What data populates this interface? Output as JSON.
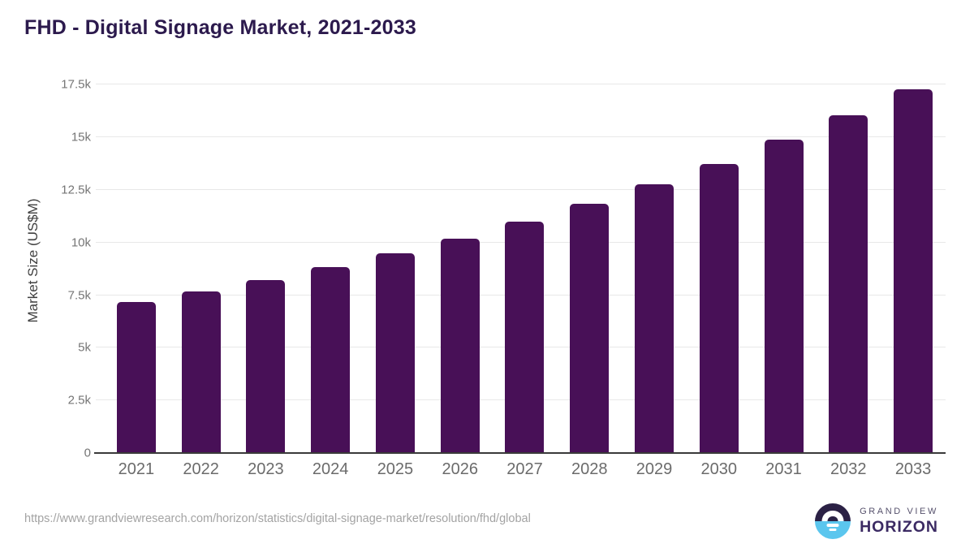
{
  "title": "FHD - Digital Signage Market, 2021-2033",
  "chart_data": {
    "type": "bar",
    "title": "FHD - Digital Signage Market, 2021-2033",
    "categories": [
      "2021",
      "2022",
      "2023",
      "2024",
      "2025",
      "2026",
      "2027",
      "2028",
      "2029",
      "2030",
      "2031",
      "2032",
      "2033"
    ],
    "values": [
      7180,
      7690,
      8230,
      8850,
      9500,
      10190,
      10980,
      11840,
      12770,
      13750,
      14880,
      16050,
      17300
    ],
    "xlabel": "",
    "ylabel": "Market Size (US$M)",
    "yticks": [
      0,
      2500,
      5000,
      7500,
      10000,
      12500,
      15000,
      17500
    ],
    "ytick_labels": [
      "0",
      "2.5k",
      "5k",
      "7.5k",
      "10k",
      "12.5k",
      "15k",
      "17.5k"
    ],
    "ylim": [
      0,
      18250
    ],
    "grid": true,
    "legend": false,
    "bar_color": "#481057"
  },
  "footer": {
    "source_url": "https://www.grandviewresearch.com/horizon/statistics/digital-signage-market/resolution/fhd/global",
    "logo": {
      "line1": "GRAND VIEW",
      "line2": "HORIZON"
    }
  },
  "colors": {
    "title": "#2c1a4d",
    "bar": "#481057",
    "grid": "#e8e8e8",
    "axis": "#3a3a3a",
    "ticklabel": "#757575",
    "xlabel": "#6b6b6b",
    "axistitle": "#3f3f3f",
    "url": "#a3a3a3",
    "logotop": "#2b2145",
    "logobottom": "#5bc6ee",
    "logotext1": "#55506b",
    "logotext2": "#3b2a63"
  }
}
